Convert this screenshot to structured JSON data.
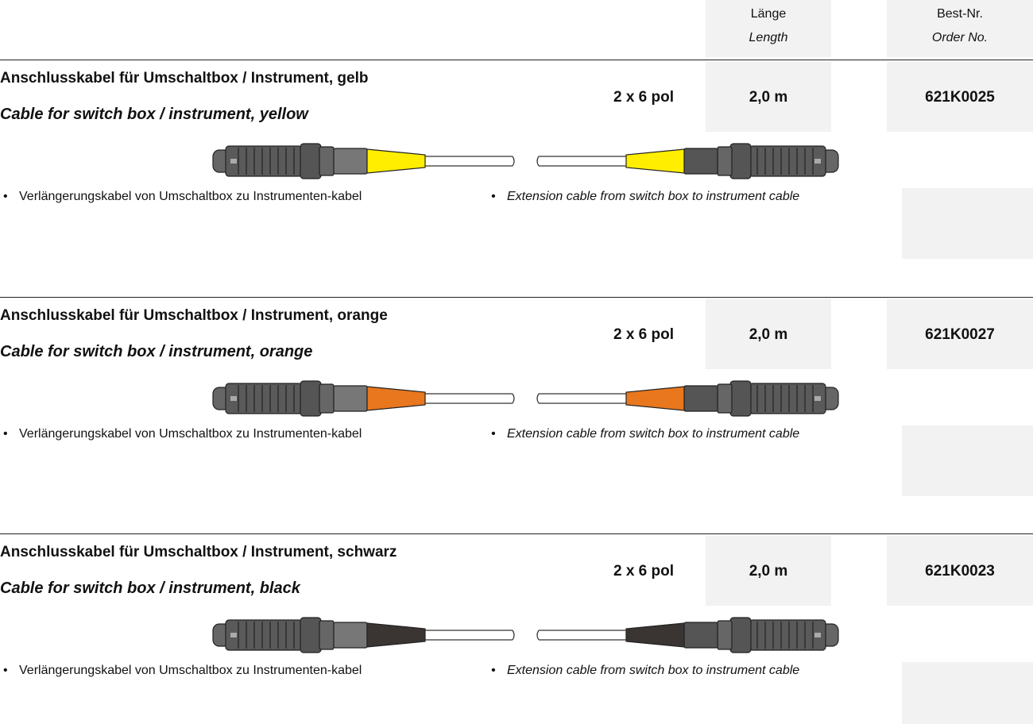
{
  "header": {
    "length_de": "Länge",
    "length_en": "Length",
    "order_de": "Best-Nr.",
    "order_en": "Order No."
  },
  "products": [
    {
      "title_de": "Anschlusskabel für Umschaltbox / Instrument, gelb",
      "title_en": "Cable for switch box / instrument, yellow",
      "poles": "2 x 6 pol",
      "length": "2,0 m",
      "order_no": "621K0025",
      "color": "#ffee00",
      "bullet_de": "Verlängerungskabel von Umschaltbox zu Instrumenten-kabel",
      "bullet_en": "Extension cable from switch box to instrument cable"
    },
    {
      "title_de": "Anschlusskabel für Umschaltbox / Instrument, orange",
      "title_en": "Cable for switch box / instrument, orange",
      "poles": "2 x 6 pol",
      "length": "2,0 m",
      "order_no": "621K0027",
      "color": "#e8771e",
      "bullet_de": "Verlängerungskabel von Umschaltbox zu Instrumenten-kabel",
      "bullet_en": "Extension cable from switch box to instrument cable"
    },
    {
      "title_de": "Anschlusskabel für Umschaltbox / Instrument, schwarz",
      "title_en": "Cable for switch box / instrument, black",
      "poles": "2 x 6 pol",
      "length": "2,0 m",
      "order_no": "621K0023",
      "color": "#3a3432",
      "bullet_de": "Verlängerungskabel von Umschaltbox zu Instrumenten-kabel",
      "bullet_en": "Extension cable from switch box to instrument cable"
    }
  ]
}
